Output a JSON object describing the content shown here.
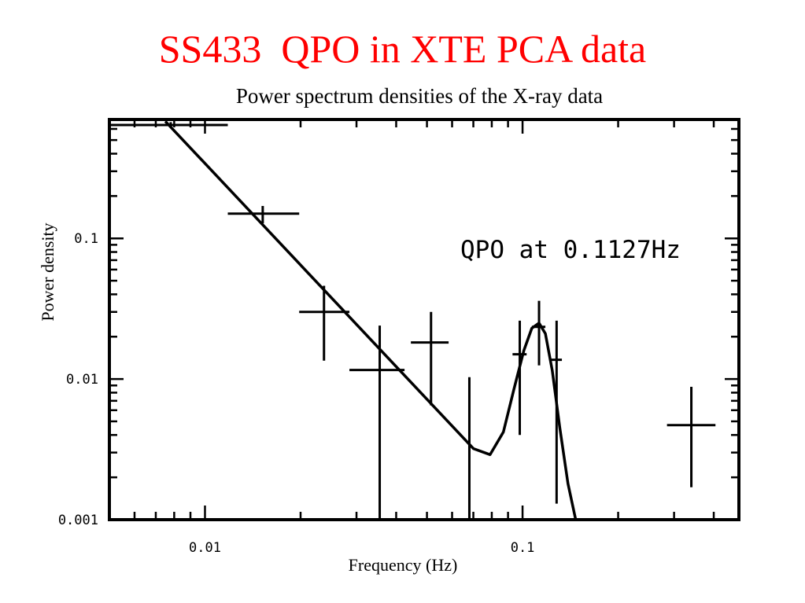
{
  "slide": {
    "title": "SS433  QPO in XTE PCA data"
  },
  "chart_data": {
    "type": "scatter",
    "title": "Power spectrum densities of the X-ray data",
    "xlabel": "Frequency (Hz)",
    "ylabel": "Power density",
    "xscale": "log",
    "yscale": "log",
    "xlim": [
      0.005,
      0.48
    ],
    "ylim": [
      0.001,
      0.7
    ],
    "xticks": [
      {
        "value": 0.01,
        "label": "0.01"
      },
      {
        "value": 0.1,
        "label": "0.1"
      }
    ],
    "yticks": [
      {
        "value": 0.1,
        "label": "0.1"
      },
      {
        "value": 0.01,
        "label": "0.01"
      },
      {
        "value": 0.001,
        "label": "0.001"
      }
    ],
    "annotation": "QPO at 0.1127Hz",
    "series": [
      {
        "type": "errorbar",
        "points": [
          {
            "x": 0.0078,
            "y": 0.64,
            "xlo": 0.005,
            "xhi": 0.0118,
            "ylo": 0.62,
            "yhi": 0.67
          },
          {
            "x": 0.0152,
            "y": 0.15,
            "xlo": 0.0118,
            "xhi": 0.0198,
            "ylo": 0.128,
            "yhi": 0.17
          },
          {
            "x": 0.0237,
            "y": 0.03,
            "xlo": 0.0198,
            "xhi": 0.0285,
            "ylo": 0.0135,
            "yhi": 0.046
          },
          {
            "x": 0.0355,
            "y": 0.0116,
            "xlo": 0.0285,
            "xhi": 0.0425,
            "ylo": 0.001,
            "yhi": 0.024
          },
          {
            "x": 0.0515,
            "y": 0.0182,
            "xlo": 0.0445,
            "xhi": 0.0585,
            "ylo": 0.0065,
            "yhi": 0.03
          },
          {
            "x": 0.068,
            "y": 0.0037,
            "xlo": 0.068,
            "xhi": 0.068,
            "ylo": 0.001,
            "yhi": 0.0103
          },
          {
            "x": 0.098,
            "y": 0.015,
            "xlo": 0.093,
            "xhi": 0.103,
            "ylo": 0.004,
            "yhi": 0.026
          },
          {
            "x": 0.1127,
            "y": 0.0235,
            "xlo": 0.107,
            "xhi": 0.118,
            "ylo": 0.0125,
            "yhi": 0.036
          },
          {
            "x": 0.128,
            "y": 0.0137,
            "xlo": 0.123,
            "xhi": 0.133,
            "ylo": 0.0013,
            "yhi": 0.026
          },
          {
            "x": 0.34,
            "y": 0.0047,
            "xlo": 0.285,
            "xhi": 0.405,
            "ylo": 0.0017,
            "yhi": 0.0088
          }
        ]
      },
      {
        "type": "line",
        "points": [
          {
            "x": 0.0075,
            "y": 0.68
          },
          {
            "x": 0.07,
            "y": 0.0032
          },
          {
            "x": 0.079,
            "y": 0.0029
          },
          {
            "x": 0.087,
            "y": 0.0042
          },
          {
            "x": 0.094,
            "y": 0.0085
          },
          {
            "x": 0.101,
            "y": 0.016
          },
          {
            "x": 0.107,
            "y": 0.023
          },
          {
            "x": 0.1127,
            "y": 0.025
          },
          {
            "x": 0.118,
            "y": 0.021
          },
          {
            "x": 0.124,
            "y": 0.0115
          },
          {
            "x": 0.131,
            "y": 0.0045
          },
          {
            "x": 0.139,
            "y": 0.0018
          },
          {
            "x": 0.147,
            "y": 0.001
          }
        ]
      }
    ]
  }
}
